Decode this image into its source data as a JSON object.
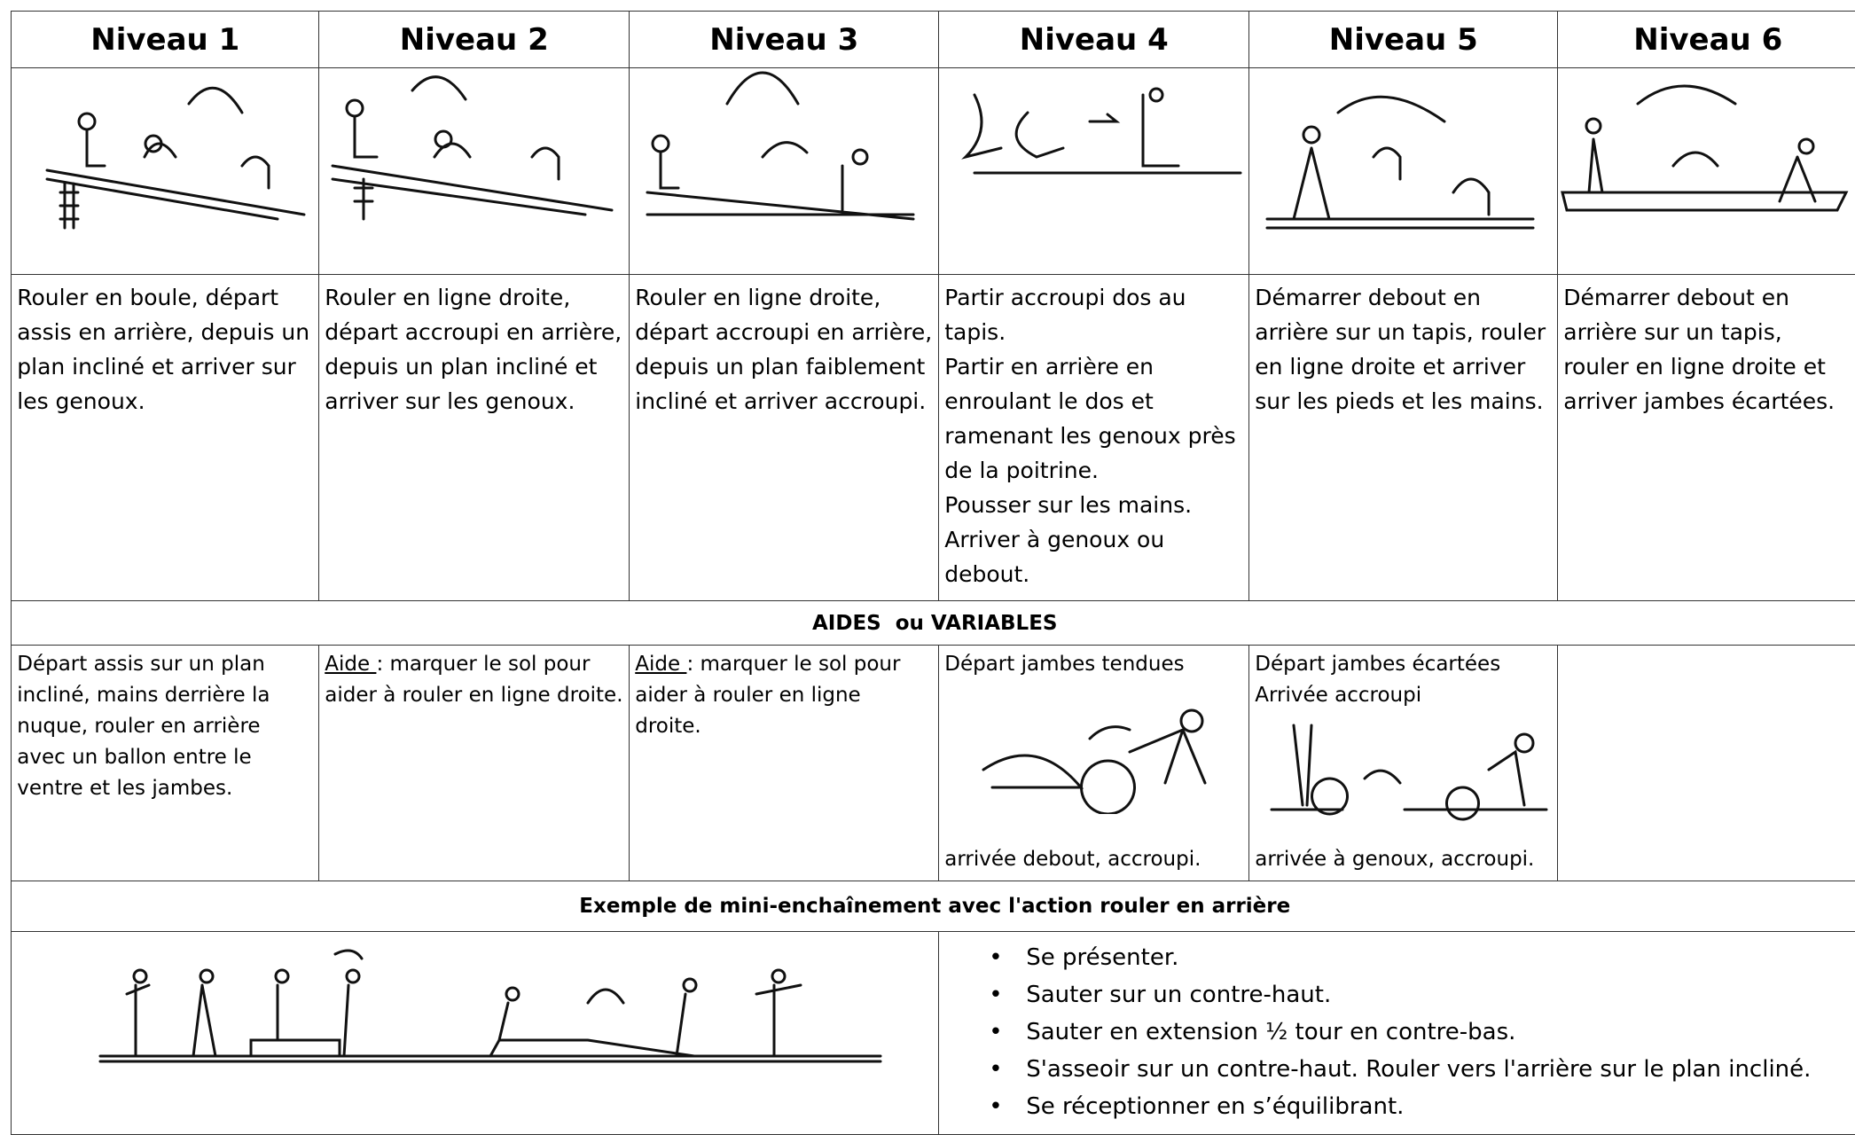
{
  "header": {
    "levels": [
      "Niveau 1",
      "Niveau 2",
      "Niveau 3",
      "Niveau 4",
      "Niveau 5",
      "Niveau 6"
    ]
  },
  "descriptions": [
    [
      "Rouler en boule, départ assis en arrière, depuis un plan incliné et arriver sur les genoux."
    ],
    [
      "Rouler en ligne droite, départ accroupi en arrière, depuis un plan incliné et arriver sur les genoux."
    ],
    [
      "Rouler en ligne droite, départ accroupi en arrière, depuis un plan faiblement incliné et arriver accroupi."
    ],
    [
      "Partir accroupi dos au tapis.",
      "Partir en arrière en enroulant le dos et ramenant les genoux près de la poitrine.",
      "Pousser sur les mains.",
      "Arriver à genoux ou debout."
    ],
    [
      "Démarrer debout en arrière sur un tapis, rouler en ligne droite et arriver sur les pieds et les mains."
    ],
    [
      "Démarrer debout en arrière sur un tapis, rouler en ligne droite et arriver jambes écartées."
    ]
  ],
  "aides_title": "AIDES  ou VARIABLES",
  "aides": {
    "level1": "Départ assis sur un plan incliné, mains derrière la nuque, rouler en arrière avec un ballon entre le ventre et les jambes.",
    "level2": {
      "label": "Aide ",
      "text": ": marquer le sol pour aider à rouler en ligne droite."
    },
    "level3": {
      "label": "Aide ",
      "text": ": marquer le sol pour aider à rouler en ligne droite."
    },
    "level4": {
      "top": "Départ jambes tendues",
      "bottom": "arrivée debout, accroupi."
    },
    "level5": {
      "top": [
        "Départ jambes écartées",
        "Arrivée accroupi"
      ],
      "bottom": "arrivée à genoux, accroupi."
    }
  },
  "example_title": "Exemple de mini-enchaînement avec l'action rouler en arrière",
  "steps": [
    "Se présenter.",
    "Sauter sur un contre-haut.",
    "Sauter en extension ½ tour en contre-bas.",
    "S'asseoir sur un contre-haut. Rouler vers l'arrière sur le plan incliné.",
    "Se réceptionner en s’équilibrant."
  ]
}
